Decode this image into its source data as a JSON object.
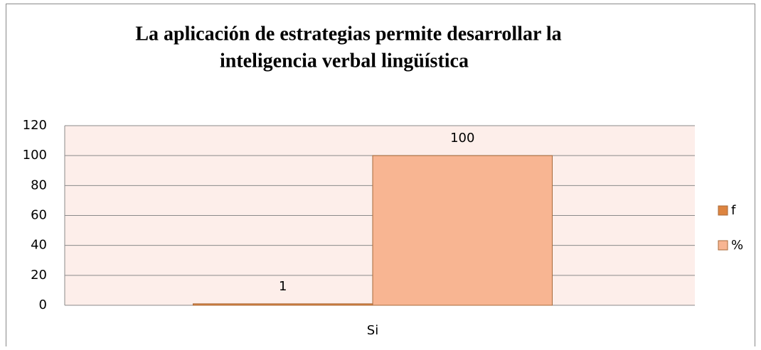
{
  "chart_data": {
    "type": "bar",
    "title": [
      "La aplicación de estrategias permite desarrollar la",
      "inteligencia verbal lingüística"
    ],
    "categories": [
      "Si"
    ],
    "series": [
      {
        "name": "f",
        "color": "#dd8440",
        "values": [
          1
        ]
      },
      {
        "name": "%",
        "color": "#f8b592",
        "values": [
          100
        ]
      }
    ],
    "ylim": [
      0,
      120
    ],
    "yticks": [
      0,
      20,
      40,
      60,
      80,
      100,
      120
    ],
    "grid": true,
    "legend": "right"
  }
}
